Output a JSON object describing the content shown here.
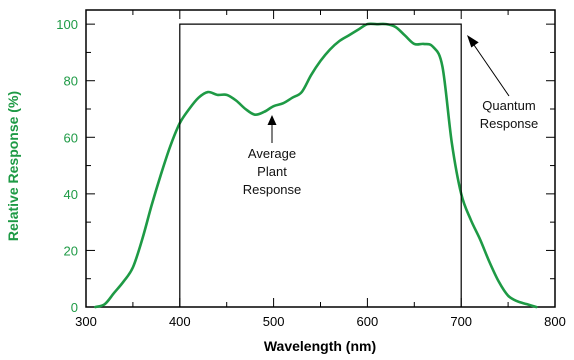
{
  "chart_data": {
    "type": "line",
    "xlabel": "Wavelength (nm)",
    "ylabel": "Relative Response (%)",
    "xlim": [
      300,
      800
    ],
    "ylim": [
      0,
      105
    ],
    "x_ticks": [
      300,
      400,
      500,
      600,
      700,
      800
    ],
    "y_ticks": [
      0,
      20,
      40,
      60,
      80,
      100
    ],
    "x_tick_labels": [
      "300",
      "400",
      "500",
      "600",
      "700",
      "800"
    ],
    "y_tick_labels": [
      "0",
      "20",
      "40",
      "60",
      "80",
      "100"
    ],
    "grid": false,
    "colors": {
      "plant": "#1e9a45",
      "quantum": "#000000",
      "ylabel": "#1e9a45",
      "yticks": "#1e9a45",
      "xticks": "#000000"
    },
    "series": [
      {
        "key": "plant",
        "name": "Average Plant Response",
        "x": [
          310,
          320,
          330,
          340,
          350,
          360,
          370,
          380,
          390,
          400,
          410,
          420,
          430,
          440,
          450,
          460,
          470,
          480,
          490,
          500,
          510,
          520,
          530,
          540,
          550,
          560,
          570,
          580,
          590,
          600,
          610,
          620,
          630,
          640,
          650,
          660,
          670,
          680,
          690,
          700,
          710,
          720,
          730,
          740,
          750,
          760,
          770,
          780
        ],
        "y": [
          0,
          1,
          5,
          9,
          14,
          24,
          36,
          47,
          57,
          65,
          70,
          74,
          76,
          75,
          75,
          73,
          70,
          68,
          69,
          71,
          72,
          74,
          76,
          82,
          87,
          91,
          94,
          96,
          98,
          100,
          100,
          100,
          99,
          96,
          93,
          93,
          92,
          85,
          58,
          40,
          31,
          24,
          16,
          9,
          4,
          2,
          1,
          0
        ]
      },
      {
        "key": "quantum",
        "name": "Quantum Response",
        "x": [
          400,
          400,
          700,
          700
        ],
        "y": [
          0,
          100,
          100,
          0
        ]
      }
    ],
    "annotations": {
      "plant": [
        "Average",
        "Plant",
        "Response"
      ],
      "quantum": [
        "Quantum",
        "Response"
      ]
    }
  }
}
